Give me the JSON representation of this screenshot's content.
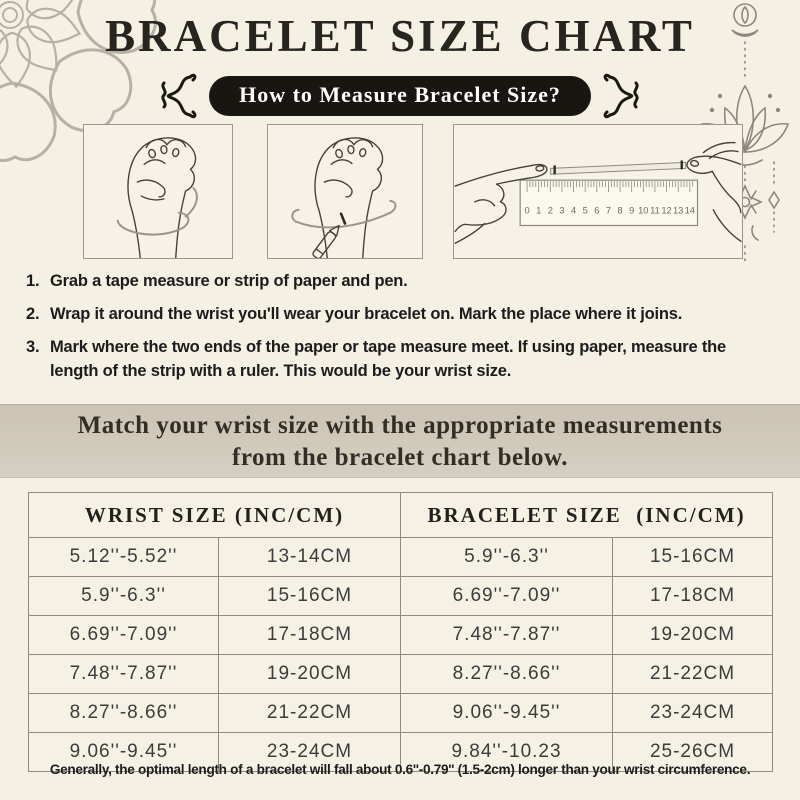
{
  "colors": {
    "background": "#f4f0e4",
    "band_background": "#cfc8b9",
    "pill_background": "#191511",
    "pill_text": "#ffffff",
    "table_border": "#8f8b81",
    "line_art": "#45403a",
    "decor_gray": "#b5b1a6"
  },
  "header": {
    "title": "BRACELET SIZE CHART",
    "pill_label": "How to Measure Bracelet Size?"
  },
  "decorations": {
    "top_left_icon": "mandala-flower-icon",
    "top_right_icon": "lotus-ornament-icon",
    "pill_flank_icon": "curly-flourish-icon"
  },
  "illustrations": {
    "panels": [
      {
        "name": "wrap-tape-around-wrist"
      },
      {
        "name": "mark-wrist-with-pen"
      },
      {
        "name": "measure-strip-with-ruler"
      }
    ],
    "ruler_numbers": [
      "0",
      "1",
      "2",
      "3",
      "4",
      "5",
      "6",
      "7",
      "8",
      "9",
      "10",
      "11",
      "12",
      "13",
      "14"
    ]
  },
  "steps": [
    {
      "num": "1.",
      "text": "Grab a tape measure or strip of paper and pen."
    },
    {
      "num": "2.",
      "text": "Wrap it around the wrist you'll wear your bracelet on. Mark the place where it joins."
    },
    {
      "num": "3.",
      "text": "Mark where the two ends of the paper or tape measure meet. If using paper, measure the length of the strip with a ruler. This would be your wrist size."
    }
  ],
  "banner": {
    "line1": "Match your wrist size with the appropriate measurements",
    "line2": "from the bracelet chart below."
  },
  "size_table": {
    "headers": [
      "WRIST SIZE (INC/CM)",
      "BRACELET SIZE  (INC/CM)"
    ],
    "rows": [
      [
        "5.12''-5.52''",
        "13-14CM",
        "5.9''-6.3''",
        "15-16CM"
      ],
      [
        "5.9''-6.3''",
        "15-16CM",
        "6.69''-7.09''",
        "17-18CM"
      ],
      [
        "6.69''-7.09''",
        "17-18CM",
        "7.48''-7.87''",
        "19-20CM"
      ],
      [
        "7.48''-7.87''",
        "19-20CM",
        "8.27''-8.66''",
        "21-22CM"
      ],
      [
        "8.27''-8.66''",
        "21-22CM",
        "9.06''-9.45''",
        "23-24CM"
      ],
      [
        "9.06''-9.45''",
        "23-24CM",
        "9.84''-10.23",
        "25-26CM"
      ]
    ]
  },
  "footer": {
    "note": "Generally, the optimal length of a bracelet will fall about 0.6''-0.79'' (1.5-2cm) longer than your wrist circumference."
  }
}
